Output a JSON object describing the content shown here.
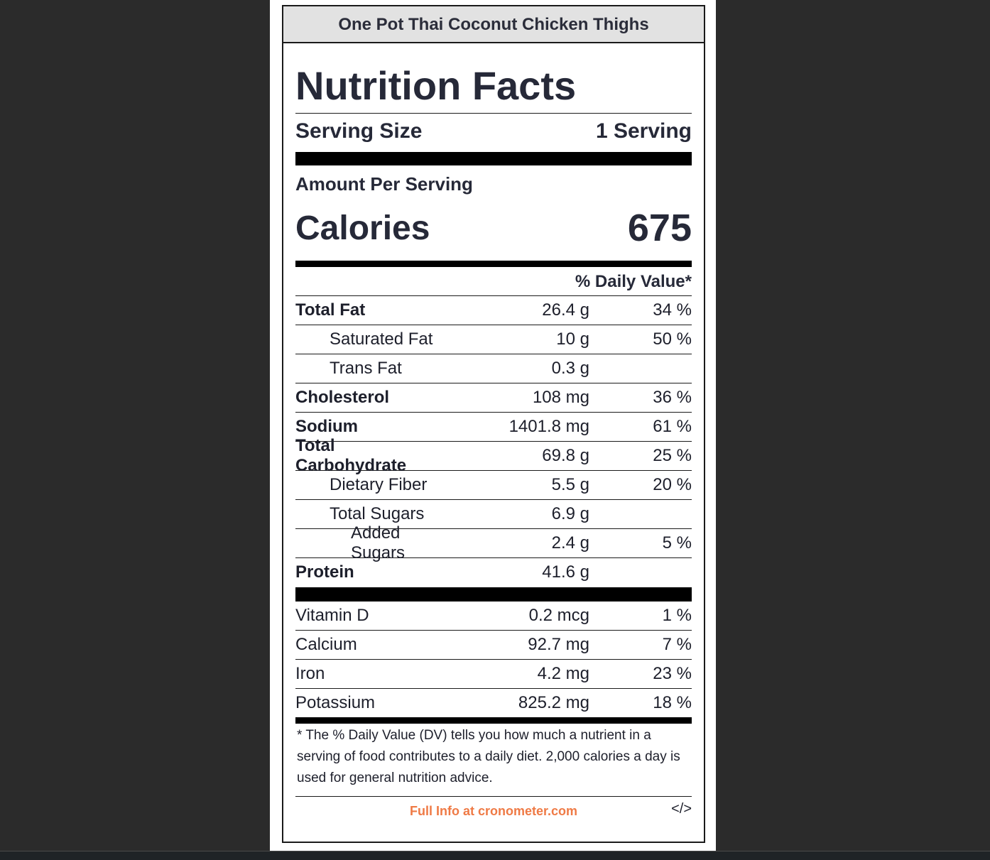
{
  "recipe_title": "One Pot Thai Coconut Chicken Thighs",
  "title": "Nutrition Facts",
  "serving": {
    "label": "Serving Size",
    "value": "1 Serving"
  },
  "amount_per_serving": "Amount Per Serving",
  "calories": {
    "label": "Calories",
    "value": "675"
  },
  "daily_value_header": "% Daily Value*",
  "nutrients": [
    {
      "name": "Total Fat",
      "amount": "26.4 g",
      "pct": "34 %"
    },
    {
      "name": "Saturated Fat",
      "amount": "10 g",
      "pct": "50 %"
    },
    {
      "name": "Trans Fat",
      "amount": "0.3 g",
      "pct": ""
    },
    {
      "name": "Cholesterol",
      "amount": "108 mg",
      "pct": "36 %"
    },
    {
      "name": "Sodium",
      "amount": "1401.8 mg",
      "pct": "61 %"
    },
    {
      "name": "Total Carbohydrate",
      "amount": "69.8 g",
      "pct": "25 %"
    },
    {
      "name": "Dietary Fiber",
      "amount": "5.5 g",
      "pct": "20 %"
    },
    {
      "name": "Total Sugars",
      "amount": "6.9 g",
      "pct": ""
    },
    {
      "name": "Added Sugars",
      "amount": "2.4 g",
      "pct": "5 %"
    },
    {
      "name": "Protein",
      "amount": "41.6 g",
      "pct": ""
    }
  ],
  "vitamins": [
    {
      "name": "Vitamin D",
      "amount": "0.2 mcg",
      "pct": "1 %"
    },
    {
      "name": "Calcium",
      "amount": "92.7 mg",
      "pct": "7 %"
    },
    {
      "name": "Iron",
      "amount": "4.2 mg",
      "pct": "23 %"
    },
    {
      "name": "Potassium",
      "amount": "825.2 mg",
      "pct": "18 %"
    }
  ],
  "footnote": "* The % Daily Value (DV) tells you how much a nutrient in a serving of food contributes to a daily diet. 2,000 calories a day is used for general nutrition advice.",
  "footer": {
    "link_text": "Full Info at cronometer.com",
    "link_color": "#ef7a45",
    "embed_icon": "</>"
  }
}
